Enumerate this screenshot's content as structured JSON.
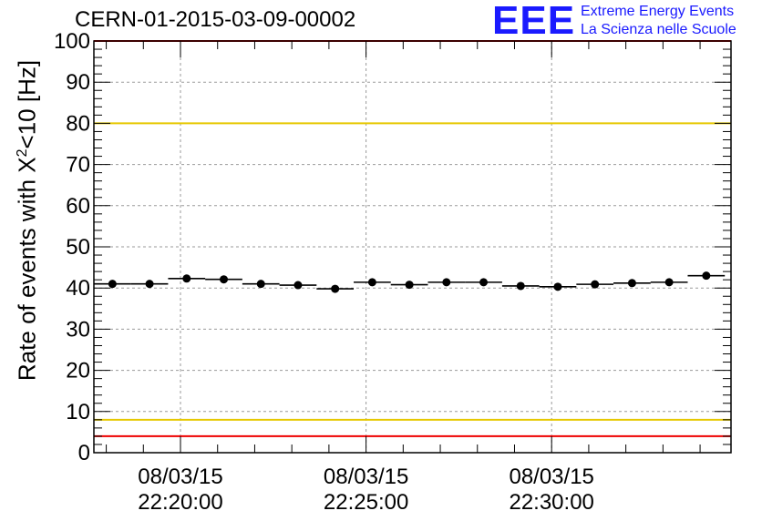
{
  "chart_data": {
    "type": "scatter",
    "title": "CERN-01-2015-03-09-00002",
    "ylabel": "Rate of events with X",
    "ylabel_sup": "2",
    "ylabel_suffix": "<10 [Hz]",
    "ylim": [
      0,
      100
    ],
    "y_ticks": [
      "0",
      "10",
      "20",
      "30",
      "40",
      "50",
      "60",
      "70",
      "80",
      "90",
      "100"
    ],
    "x_ticks": [
      {
        "date": "08/03/15",
        "time": "22:20:00"
      },
      {
        "date": "08/03/15",
        "time": "22:25:00"
      },
      {
        "date": "08/03/15",
        "time": "22:30:00"
      }
    ],
    "x_range": [
      "22:17:40",
      "22:34:50"
    ],
    "grid": true,
    "points": [
      {
        "time": "22:18:10",
        "y": 41.0
      },
      {
        "time": "22:19:10",
        "y": 41.0
      },
      {
        "time": "22:20:10",
        "y": 42.3
      },
      {
        "time": "22:21:10",
        "y": 42.1
      },
      {
        "time": "22:22:10",
        "y": 41.0
      },
      {
        "time": "22:23:10",
        "y": 40.7
      },
      {
        "time": "22:24:10",
        "y": 39.8
      },
      {
        "time": "22:25:10",
        "y": 41.4
      },
      {
        "time": "22:26:10",
        "y": 40.8
      },
      {
        "time": "22:27:10",
        "y": 41.4
      },
      {
        "time": "22:28:10",
        "y": 41.4
      },
      {
        "time": "22:29:10",
        "y": 40.5
      },
      {
        "time": "22:30:10",
        "y": 40.3
      },
      {
        "time": "22:31:10",
        "y": 40.9
      },
      {
        "time": "22:32:10",
        "y": 41.2
      },
      {
        "time": "22:33:10",
        "y": 41.4
      },
      {
        "time": "22:34:10",
        "y": 43.0
      }
    ],
    "bin_width_seconds": 60,
    "reference_lines": [
      {
        "y": 100,
        "color": "#ee0000"
      },
      {
        "y": 80,
        "color": "#e6c800"
      },
      {
        "y": 8,
        "color": "#e6c800"
      },
      {
        "y": 4,
        "color": "#ee0000"
      }
    ]
  },
  "logo": {
    "mark": "EEE",
    "line1": "Extreme Energy Events",
    "line2": "La Scienza nelle Scuole",
    "color": "#1a1aff"
  }
}
